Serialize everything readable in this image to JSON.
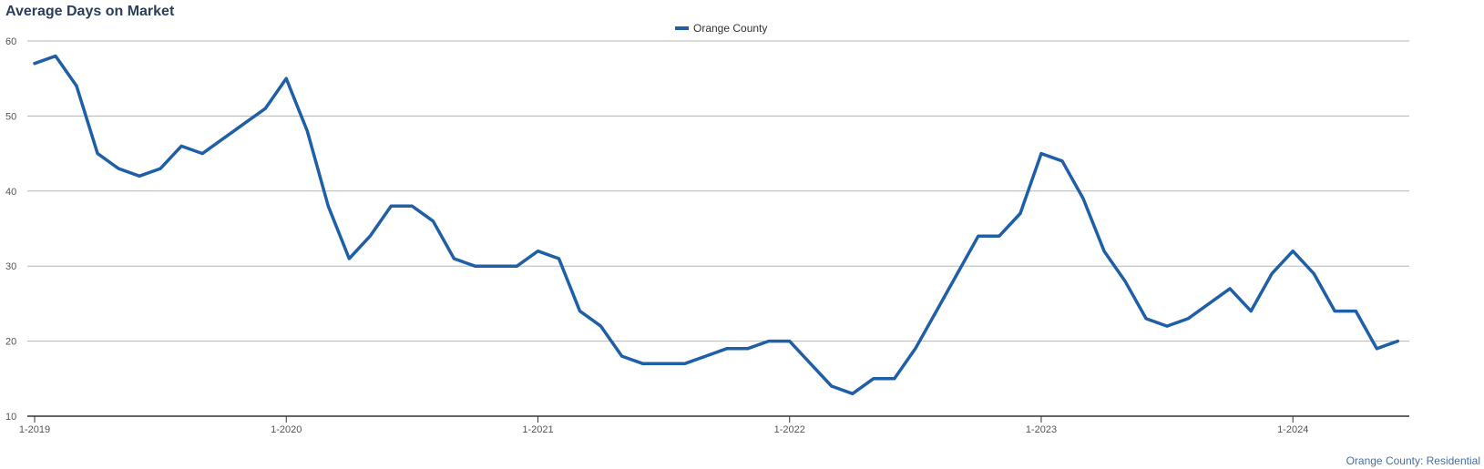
{
  "chart_title": "Average Days on Market",
  "footer_note": "Orange County: Residential",
  "chart_data": {
    "type": "line",
    "title": "Average Days on Market",
    "xlabel": "",
    "ylabel": "",
    "ylim": [
      10,
      60
    ],
    "yticks": [
      10,
      20,
      30,
      40,
      50,
      60
    ],
    "xtick_labels": [
      "1-2019",
      "1-2020",
      "1-2021",
      "1-2022",
      "1-2023",
      "1-2024"
    ],
    "grid": true,
    "legend_position": "top-center",
    "color": "#1f5fa6",
    "series": [
      {
        "name": "Orange County",
        "x": [
          "1-2019",
          "2-2019",
          "3-2019",
          "4-2019",
          "5-2019",
          "6-2019",
          "7-2019",
          "8-2019",
          "9-2019",
          "10-2019",
          "11-2019",
          "12-2019",
          "1-2020",
          "2-2020",
          "3-2020",
          "4-2020",
          "5-2020",
          "6-2020",
          "7-2020",
          "8-2020",
          "9-2020",
          "10-2020",
          "11-2020",
          "12-2020",
          "1-2021",
          "2-2021",
          "3-2021",
          "4-2021",
          "5-2021",
          "6-2021",
          "7-2021",
          "8-2021",
          "9-2021",
          "10-2021",
          "11-2021",
          "12-2021",
          "1-2022",
          "2-2022",
          "3-2022",
          "4-2022",
          "5-2022",
          "6-2022",
          "7-2022",
          "8-2022",
          "9-2022",
          "10-2022",
          "11-2022",
          "12-2022",
          "1-2023",
          "2-2023",
          "3-2023",
          "4-2023",
          "5-2023",
          "6-2023",
          "7-2023",
          "8-2023",
          "9-2023",
          "10-2023",
          "11-2023",
          "12-2023",
          "1-2024",
          "2-2024",
          "3-2024",
          "4-2024",
          "5-2024",
          "6-2024"
        ],
        "values": [
          57,
          58,
          54,
          45,
          43,
          42,
          43,
          46,
          45,
          47,
          49,
          51,
          55,
          48,
          38,
          31,
          34,
          38,
          38,
          36,
          31,
          30,
          30,
          30,
          32,
          31,
          24,
          22,
          18,
          17,
          17,
          17,
          18,
          19,
          19,
          20,
          20,
          17,
          14,
          13,
          15,
          15,
          19,
          24,
          29,
          34,
          34,
          37,
          45,
          44,
          39,
          32,
          28,
          23,
          22,
          23,
          25,
          27,
          24,
          29,
          32,
          29,
          24,
          24,
          19,
          20
        ]
      }
    ]
  }
}
